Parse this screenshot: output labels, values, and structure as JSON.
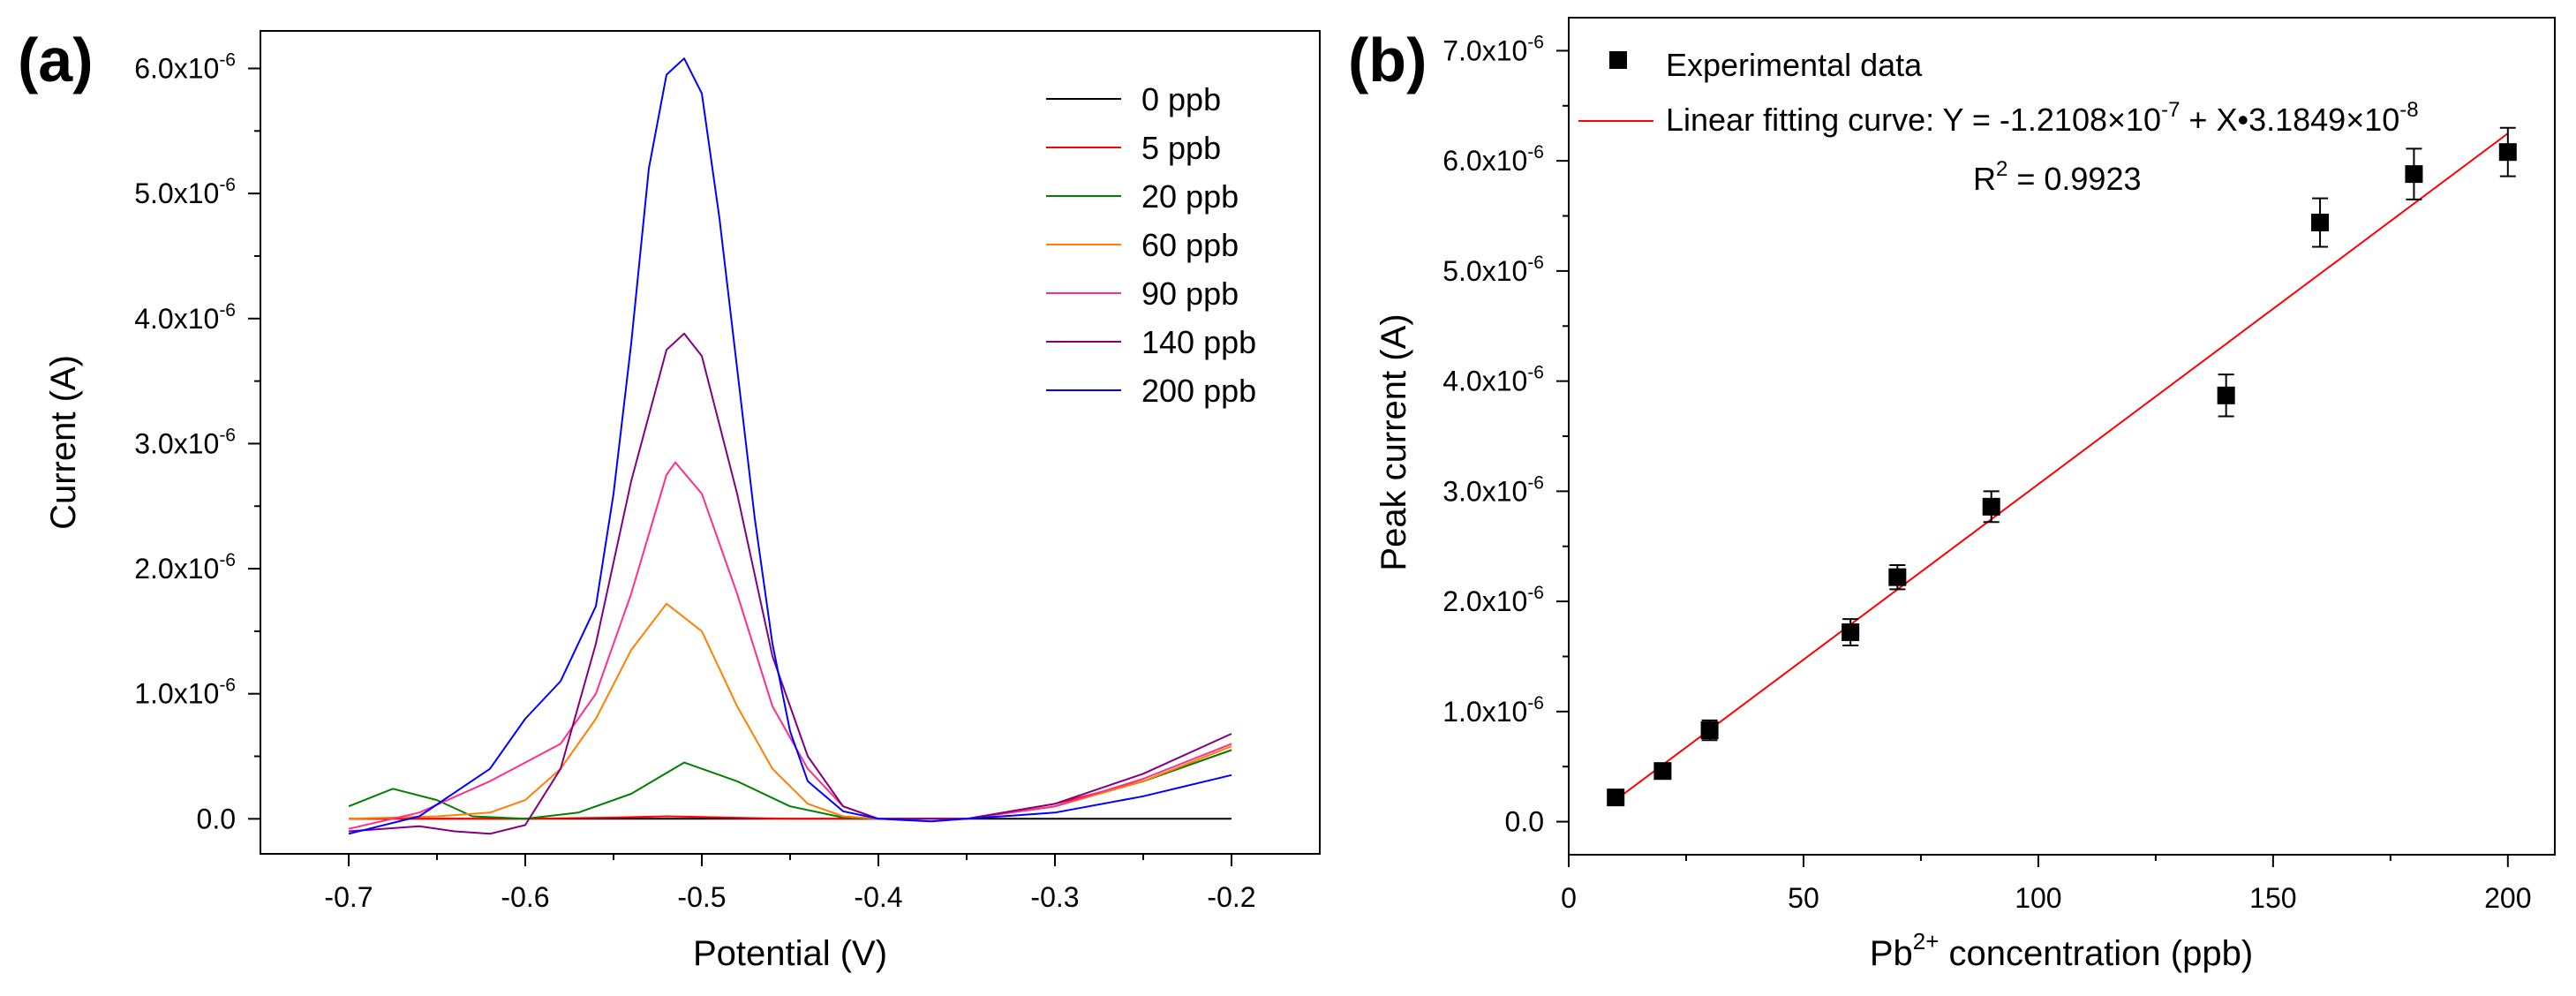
{
  "panels": {
    "a": {
      "label": "(a)"
    },
    "b": {
      "label": "(b)"
    }
  },
  "chart_data": [
    {
      "type": "line",
      "panel": "(a)",
      "title": "",
      "xlabel": "Potential (V)",
      "ylabel": "Current (A)",
      "xlim": [
        -0.75,
        -0.15
      ],
      "ylim": [
        -2.8e-07,
        6.3e-06
      ],
      "x_ticks": [
        {
          "value": -0.7,
          "label": "-0.7"
        },
        {
          "value": -0.6,
          "label": "-0.6"
        },
        {
          "value": -0.5,
          "label": "-0.5"
        },
        {
          "value": -0.4,
          "label": "-0.4"
        },
        {
          "value": -0.3,
          "label": "-0.3"
        },
        {
          "value": -0.2,
          "label": "-0.2"
        }
      ],
      "y_ticks": [
        {
          "value": 0,
          "mant": "0.0",
          "exp": ""
        },
        {
          "value": 1e-06,
          "mant": "1.0x10",
          "exp": "-6"
        },
        {
          "value": 2e-06,
          "mant": "2.0x10",
          "exp": "-6"
        },
        {
          "value": 3e-06,
          "mant": "3.0x10",
          "exp": "-6"
        },
        {
          "value": 4e-06,
          "mant": "4.0x10",
          "exp": "-6"
        },
        {
          "value": 5e-06,
          "mant": "5.0x10",
          "exp": "-6"
        },
        {
          "value": 6e-06,
          "mant": "6.0x10",
          "exp": "-6"
        }
      ],
      "legend_position": "top-right",
      "series": [
        {
          "name": "0 ppb",
          "color": "#000000",
          "x": [
            -0.7,
            -0.65,
            -0.6,
            -0.55,
            -0.5,
            -0.45,
            -0.4,
            -0.35,
            -0.3,
            -0.25,
            -0.2
          ],
          "y": [
            0,
            0,
            0,
            0,
            0,
            0,
            0,
            0,
            0,
            0,
            0
          ]
        },
        {
          "name": "5 ppb",
          "color": "#ff0000",
          "x": [
            -0.7,
            -0.6,
            -0.55,
            -0.52,
            -0.5,
            -0.45,
            -0.4,
            -0.35,
            -0.3,
            -0.25,
            -0.2
          ],
          "y": [
            0,
            0,
            1e-08,
            2e-08,
            1.5e-08,
            0,
            0,
            0,
            1.2e-07,
            3e-07,
            5.5e-07
          ]
        },
        {
          "name": "20 ppb",
          "color": "#008000",
          "x": [
            -0.7,
            -0.675,
            -0.65,
            -0.63,
            -0.6,
            -0.57,
            -0.54,
            -0.51,
            -0.48,
            -0.45,
            -0.42,
            -0.4,
            -0.35,
            -0.3,
            -0.25,
            -0.2
          ],
          "y": [
            1e-07,
            2.4e-07,
            1.5e-07,
            2e-08,
            0,
            5e-08,
            2e-07,
            4.5e-07,
            3e-07,
            1e-07,
            1e-08,
            0,
            0,
            1e-07,
            3e-07,
            5.5e-07
          ]
        },
        {
          "name": "60 ppb",
          "color": "#ff8000",
          "x": [
            -0.7,
            -0.65,
            -0.62,
            -0.6,
            -0.58,
            -0.56,
            -0.54,
            -0.52,
            -0.5,
            -0.48,
            -0.46,
            -0.44,
            -0.42,
            -0.4,
            -0.35,
            -0.3,
            -0.25,
            -0.2
          ],
          "y": [
            0,
            2e-08,
            5e-08,
            1.5e-07,
            4e-07,
            8e-07,
            1.35e-06,
            1.72e-06,
            1.5e-06,
            9e-07,
            4e-07,
            1.2e-07,
            2e-08,
            0,
            0,
            1e-07,
            3e-07,
            5.8e-07
          ]
        },
        {
          "name": "90 ppb",
          "color": "#ff2e8a",
          "x": [
            -0.7,
            -0.66,
            -0.62,
            -0.6,
            -0.58,
            -0.56,
            -0.54,
            -0.52,
            -0.515,
            -0.5,
            -0.48,
            -0.46,
            -0.44,
            -0.42,
            -0.4,
            -0.35,
            -0.3,
            -0.25,
            -0.2
          ],
          "y": [
            -8e-08,
            5e-08,
            3e-07,
            4.5e-07,
            6e-07,
            1e-06,
            1.8e-06,
            2.75e-06,
            2.85e-06,
            2.6e-06,
            1.8e-06,
            9e-07,
            4e-07,
            1e-07,
            0,
            0,
            1e-07,
            3.2e-07,
            6e-07
          ]
        },
        {
          "name": "140 ppb",
          "color": "#800080",
          "x": [
            -0.7,
            -0.66,
            -0.64,
            -0.62,
            -0.6,
            -0.58,
            -0.56,
            -0.54,
            -0.52,
            -0.51,
            -0.5,
            -0.48,
            -0.46,
            -0.44,
            -0.42,
            -0.4,
            -0.35,
            -0.3,
            -0.25,
            -0.2
          ],
          "y": [
            -1e-07,
            -6e-08,
            -1e-07,
            -1.2e-07,
            -5e-08,
            4e-07,
            1.4e-06,
            2.7e-06,
            3.75e-06,
            3.88e-06,
            3.7e-06,
            2.6e-06,
            1.3e-06,
            5e-07,
            1e-07,
            0,
            0,
            1.2e-07,
            3.6e-07,
            6.8e-07
          ]
        },
        {
          "name": "200 ppb",
          "color": "#0000ff",
          "x": [
            -0.7,
            -0.66,
            -0.62,
            -0.6,
            -0.58,
            -0.56,
            -0.55,
            -0.54,
            -0.53,
            -0.52,
            -0.51,
            -0.5,
            -0.49,
            -0.48,
            -0.47,
            -0.46,
            -0.45,
            -0.44,
            -0.42,
            -0.4,
            -0.37,
            -0.35,
            -0.3,
            -0.25,
            -0.2
          ],
          "y": [
            -1.2e-07,
            2e-08,
            4e-07,
            8e-07,
            1.1e-06,
            1.7e-06,
            2.6e-06,
            3.8e-06,
            5.2e-06,
            5.95e-06,
            6.08e-06,
            5.8e-06,
            4.8e-06,
            3.6e-06,
            2.4e-06,
            1.4e-06,
            7e-07,
            3e-07,
            6e-08,
            0,
            -2e-08,
            0,
            5e-08,
            1.8e-07,
            3.5e-07
          ]
        }
      ]
    },
    {
      "type": "scatter",
      "panel": "(b)",
      "title": "",
      "xlabel_prefix": "Pb",
      "xlabel_sup": "2+",
      "xlabel_suffix": " concentration (ppb)",
      "ylabel": "Peak current (A)",
      "xlim": [
        0,
        210
      ],
      "ylim": [
        -3e-07,
        7.3e-06
      ],
      "x_ticks": [
        {
          "value": 0,
          "label": "0"
        },
        {
          "value": 50,
          "label": "50"
        },
        {
          "value": 100,
          "label": "100"
        },
        {
          "value": 150,
          "label": "150"
        },
        {
          "value": 200,
          "label": "200"
        }
      ],
      "y_ticks": [
        {
          "value": 0,
          "mant": "0.0",
          "exp": ""
        },
        {
          "value": 1e-06,
          "mant": "1.0x10",
          "exp": "-6"
        },
        {
          "value": 2e-06,
          "mant": "2.0x10",
          "exp": "-6"
        },
        {
          "value": 3e-06,
          "mant": "3.0x10",
          "exp": "-6"
        },
        {
          "value": 4e-06,
          "mant": "4.0x10",
          "exp": "-6"
        },
        {
          "value": 5e-06,
          "mant": "5.0x10",
          "exp": "-6"
        },
        {
          "value": 6e-06,
          "mant": "6.0x10",
          "exp": "-6"
        },
        {
          "value": 7e-06,
          "mant": "7.0x10",
          "exp": "-6"
        }
      ],
      "legend_position": "top-left",
      "series": [
        {
          "name": "Experimental data",
          "color": "#000000",
          "marker": "square",
          "x": [
            10,
            20,
            30,
            60,
            70,
            90,
            140,
            160,
            180,
            200
          ],
          "y": [
            2.2e-07,
            4.6e-07,
            8.3e-07,
            1.72e-06,
            2.22e-06,
            2.86e-06,
            3.87e-06,
            5.44e-06,
            5.88e-06,
            6.08e-06
          ],
          "err": [
            5e-08,
            6e-08,
            9e-08,
            1.2e-07,
            1.1e-07,
            1.4e-07,
            1.9e-07,
            2.2e-07,
            2.3e-07,
            2.2e-07
          ]
        },
        {
          "name": "Linear fitting curve",
          "color": "#ff0000",
          "type": "line",
          "intercept": -1.2108e-07,
          "slope": 3.1849e-08,
          "x_range": [
            10,
            200
          ]
        }
      ],
      "annotation": {
        "fit_label_prefix": "Linear fitting curve: Y = -1.2108",
        "times": "×",
        "ten": "10",
        "exp1": "-7",
        "mid": " + X",
        "bullet": "•",
        "coef": "3.1849",
        "exp2": "-8",
        "r2_r": "R",
        "r2_sup": "2",
        "r2_value": " = 0.9923"
      }
    }
  ]
}
